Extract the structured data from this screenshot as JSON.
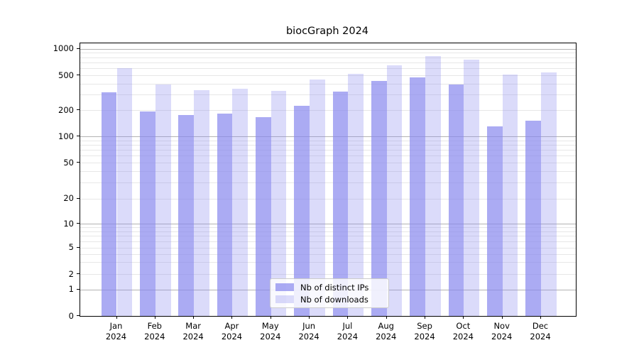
{
  "chart_data": {
    "type": "bar",
    "title": "biocGraph 2024",
    "categories": [
      "Jan",
      "Feb",
      "Mar",
      "Apr",
      "May",
      "Jun",
      "Jul",
      "Aug",
      "Sep",
      "Oct",
      "Nov",
      "Dec"
    ],
    "category_year": "2024",
    "series": [
      {
        "name": "Nb of distinct IPs",
        "color": "rgba(136,136,238,0.7)",
        "values": [
          320,
          192,
          175,
          183,
          165,
          224,
          328,
          428,
          470,
          390,
          130,
          150
        ]
      },
      {
        "name": "Nb of downloads",
        "color": "rgba(136,136,238,0.3)",
        "values": [
          600,
          395,
          340,
          350,
          330,
          445,
          520,
          650,
          820,
          755,
          505,
          535
        ]
      }
    ],
    "yaxis": {
      "scale": "asinh-log",
      "range": [
        0,
        1100
      ],
      "tick_values": [
        1000,
        500,
        200,
        100,
        50,
        20,
        10,
        5,
        2,
        1,
        0
      ],
      "tick_labels": [
        "1000",
        "500",
        "200",
        "100",
        "50",
        "20",
        "10",
        "5",
        "2",
        "1",
        "0"
      ],
      "minor_grid_values": [
        2,
        3,
        4,
        5,
        6,
        7,
        8,
        9,
        20,
        30,
        40,
        50,
        60,
        70,
        80,
        90,
        200,
        300,
        400,
        500,
        600,
        700,
        800,
        900
      ],
      "major_grid_values": [
        1,
        10,
        100,
        1000
      ]
    },
    "grid": true,
    "legend_position": "bottom-center",
    "colors": {
      "bar_base": "#8888ee",
      "major_grid": "#b3b3b3",
      "minor_grid": "#e7e7e7",
      "frame": "#000000"
    }
  }
}
